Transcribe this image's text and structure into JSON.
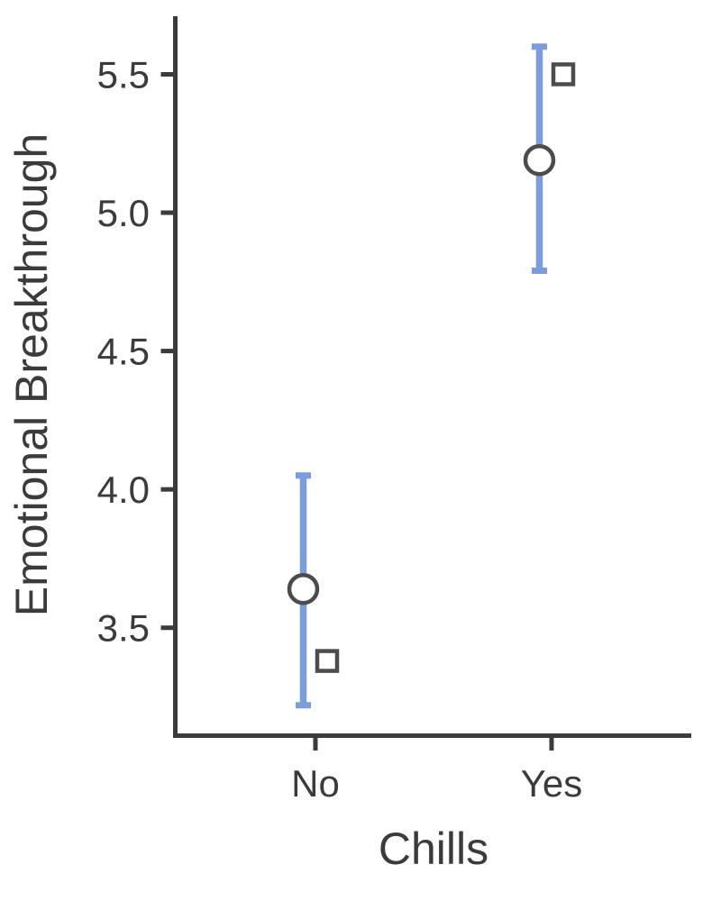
{
  "figure": {
    "background_color": "#ffffff",
    "axis_color": "#3b3b3b",
    "text_color": "#3b3b3b",
    "errorbar_color": "#7b9dde",
    "marker_stroke_color": "#4c4c4c",
    "marker_fill_color": "#ffffff"
  },
  "chart_data": {
    "type": "scatter",
    "subtype": "point-estimates-with-error-bars",
    "xlabel": "Chills",
    "ylabel": "Emotional Breakthrough",
    "categories": [
      "No",
      "Yes"
    ],
    "series": [
      {
        "marker": "circle",
        "description": "circle markers centered on blue error bars",
        "values": [
          3.64,
          5.19
        ],
        "error_low": [
          3.22,
          4.79
        ],
        "error_high": [
          4.05,
          5.6
        ]
      },
      {
        "marker": "square",
        "description": "square markers offset right of each error bar",
        "values": [
          3.38,
          5.5
        ]
      }
    ],
    "yticks": [
      "3.5",
      "4.0",
      "4.5",
      "5.0",
      "5.5"
    ],
    "ylim": [
      3.11,
      5.71
    ],
    "grid": false,
    "legend_position": "none"
  }
}
